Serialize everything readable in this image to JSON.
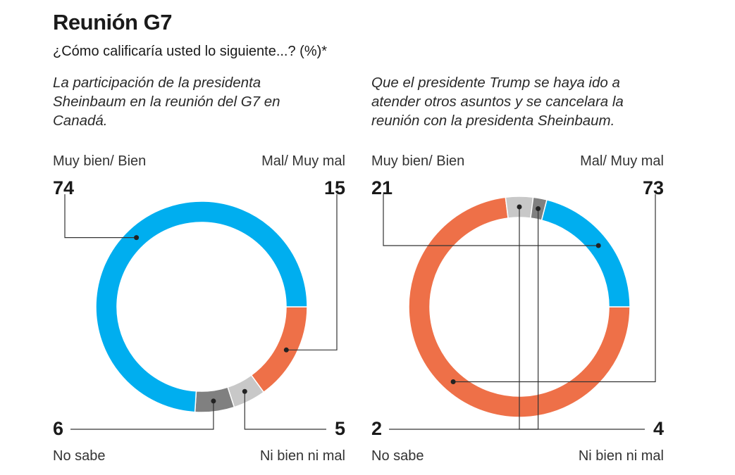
{
  "title": "Reunión G7",
  "subtitle": "¿Cómo calificaría usted lo siguiente...? (%)*",
  "colors": {
    "muy_bien": "#00AEEF",
    "mal": "#EE7048",
    "no_sabe": "#808080",
    "ni_bien": "#C8C8C8"
  },
  "labels": {
    "muy_bien": "Muy bien/ Bien",
    "mal": "Mal/ Muy mal",
    "no_sabe": "No sabe",
    "ni_bien": "Ni bien ni mal"
  },
  "charts": [
    {
      "question": "La participación de la presidenta Sheinbaum en la reunión del G7 en Canadá.",
      "values": {
        "muy_bien": "74",
        "mal": "15",
        "no_sabe": "6",
        "ni_bien": "5"
      }
    },
    {
      "question": "Que el presidente Trump se haya ido a atender otros asuntos y se cancelara la reunión con la presidenta Sheinbaum.",
      "values": {
        "muy_bien": "21",
        "mal": "73",
        "no_sabe": "2",
        "ni_bien": "4"
      }
    }
  ],
  "chart_data": [
    {
      "type": "pie",
      "title": "La participación de la presidenta Sheinbaum en la reunión del G7 en Canadá.",
      "categories": [
        "Muy bien/ Bien",
        "Mal/ Muy mal",
        "Ni bien ni mal",
        "No sabe"
      ],
      "values": [
        74,
        15,
        5,
        6
      ],
      "unit": "%",
      "donut": true
    },
    {
      "type": "pie",
      "title": "Que el presidente Trump se haya ido a atender otros asuntos y se cancelara la reunión con la presidenta Sheinbaum.",
      "categories": [
        "Muy bien/ Bien",
        "Mal/ Muy mal",
        "Ni bien ni mal",
        "No sabe"
      ],
      "values": [
        21,
        73,
        4,
        2
      ],
      "unit": "%",
      "donut": true
    }
  ]
}
